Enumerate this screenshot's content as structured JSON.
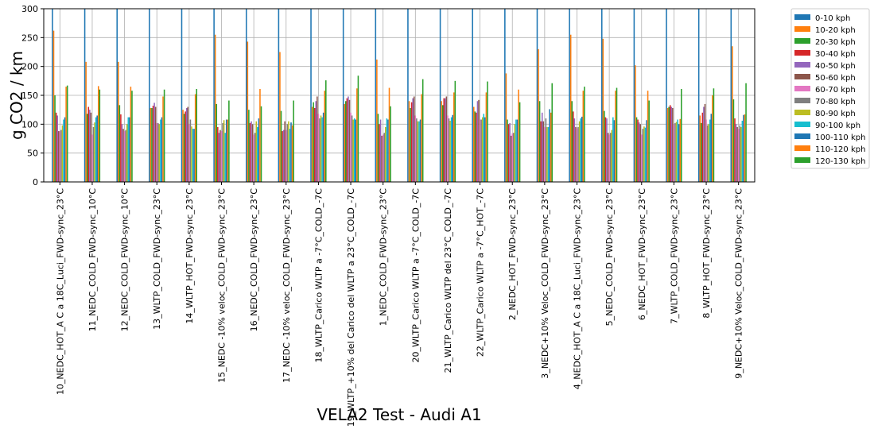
{
  "chart_data": {
    "type": "bar",
    "xlabel": "VELA2 Test - Audi A1",
    "ylabel": "g CO2 / km",
    "ylim": [
      0,
      300
    ],
    "yticks": [
      0,
      50,
      100,
      150,
      200,
      250,
      300
    ],
    "grid": true,
    "legend_position": "outside-right",
    "categories": [
      "10_NEDC_HOT_A C a 18C_Luci_FWD-sync_23°C",
      "11_NEDC_COLD_FWD-sync_10°C",
      "12_NEDC_COLD_FWD-sync_10°C",
      "13_WLTP_COLD_FWD-sync_23°C",
      "14_WLTP_HOT_FWD-sync_23°C",
      "15_NEDC -10% veloc_COLD_FWD-sync_23°C",
      "16_NEDC_COLD_FWD-sync_23°C",
      "17_NEDC -10% veloc_COLD_FWD-sync_23°C",
      "18_WLTP_Carico WLTP a -7°C_COLD_-7C",
      "19_WLTP_+10% del Carico del WLTP a 23°C_COLD_-7C",
      "1_NEDC_COLD_FWD-sync_23°C",
      "20_WLTP_Carico WLTP a -7°C_COLD_-7C",
      "21_WLTP_Carico WLTP del 23°C_COLD_-7C",
      "22_WLTP_Carico WLTP a -7°C_HOT_-7C",
      "2_NEDC_HOT_FWD-sync_23°C",
      "3_NEDC+10% Veloc_COLD_FWD-sync_23°C",
      "4_NEDC_HOT_A C a 18C_Luci_FWD-sync_23°C",
      "5_NEDC_COLD_FWD-sync_23°C",
      "6_NEDC_HOT_FWD-sync_23°C",
      "7_WLTP_COLD_FWD-sync_23°C",
      "8_WLTP_HOT_FWD-sync_23°C",
      "9_NEDC+10% Veloc_COLD_FWD-sync_23°C"
    ],
    "series": [
      {
        "name": "0-10 kph",
        "color": "#1f77b4",
        "values": [
          350,
          350,
          350,
          350,
          350,
          350,
          350,
          350,
          350,
          350,
          350,
          350,
          350,
          350,
          350,
          350,
          350,
          350,
          350,
          350,
          350,
          350
        ]
      },
      {
        "name": "10-20 kph",
        "color": "#ff7f0e",
        "values": [
          262,
          208,
          208,
          128,
          125,
          255,
          243,
          225,
          130,
          135,
          212,
          140,
          140,
          130,
          188,
          230,
          255,
          248,
          202,
          128,
          115,
          235
        ]
      },
      {
        "name": "20-30 kph",
        "color": "#2ca02c",
        "values": [
          150,
          118,
          133,
          128,
          118,
          135,
          125,
          123,
          138,
          140,
          118,
          128,
          133,
          122,
          108,
          140,
          140,
          123,
          112,
          130,
          102,
          143
        ]
      },
      {
        "name": "30-40 kph",
        "color": "#d62728",
        "values": [
          120,
          130,
          117,
          132,
          122,
          95,
          102,
          88,
          128,
          145,
          100,
          138,
          145,
          120,
          100,
          105,
          122,
          112,
          108,
          133,
          120,
          110
        ]
      },
      {
        "name": "40-50 kph",
        "color": "#9467bd",
        "values": [
          115,
          125,
          100,
          137,
          128,
          85,
          105,
          90,
          140,
          148,
          108,
          145,
          145,
          140,
          102,
          120,
          110,
          110,
          103,
          130,
          130,
          100
        ]
      },
      {
        "name": "50-60 kph",
        "color": "#8c564b",
        "values": [
          88,
          120,
          92,
          130,
          130,
          90,
          100,
          105,
          148,
          142,
          80,
          148,
          148,
          142,
          80,
          105,
          95,
          85,
          100,
          128,
          135,
          95
        ]
      },
      {
        "name": "60-70 kph",
        "color": "#e377c2",
        "values": [
          88,
          82,
          88,
          102,
          100,
          88,
          82,
          90,
          118,
          120,
          82,
          115,
          115,
          108,
          84,
          95,
          93,
          82,
          82,
          100,
          108,
          92
        ]
      },
      {
        "name": "70-80 kph",
        "color": "#7f7f7f",
        "values": [
          90,
          95,
          90,
          102,
          108,
          102,
          85,
          100,
          110,
          115,
          85,
          110,
          110,
          108,
          85,
          110,
          95,
          85,
          92,
          102,
          98,
          98
        ]
      },
      {
        "name": "80-90 kph",
        "color": "#bcbd22",
        "values": [
          98,
          103,
          100,
          100,
          96,
          107,
          105,
          105,
          115,
          108,
          95,
          105,
          106,
          112,
          100,
          95,
          105,
          90,
          96,
          104,
          100,
          95
        ]
      },
      {
        "name": "90-100 kph",
        "color": "#17becf",
        "values": [
          108,
          112,
          112,
          108,
          92,
          85,
          95,
          92,
          112,
          110,
          110,
          105,
          112,
          118,
          108,
          95,
          110,
          112,
          94,
          108,
          108,
          106
        ]
      },
      {
        "name": "100-110 kph",
        "color": "#1f77b4",
        "values": [
          112,
          115,
          112,
          112,
          92,
          108,
          110,
          103,
          120,
          108,
          108,
          108,
          116,
          112,
          108,
          126,
          113,
          107,
          107,
          100,
          118,
          116
        ]
      },
      {
        "name": "110-120 kph",
        "color": "#ff7f0e",
        "values": [
          165,
          166,
          165,
          148,
          152,
          108,
          161,
          98,
          158,
          162,
          163,
          152,
          155,
          155,
          160,
          120,
          158,
          158,
          158,
          109,
          150,
          117
        ]
      },
      {
        "name": "120-130 kph",
        "color": "#2ca02c",
        "values": [
          167,
          160,
          158,
          160,
          161,
          141,
          131,
          141,
          176,
          184,
          131,
          178,
          175,
          174,
          138,
          171,
          165,
          163,
          141,
          161,
          162,
          171
        ]
      }
    ]
  }
}
